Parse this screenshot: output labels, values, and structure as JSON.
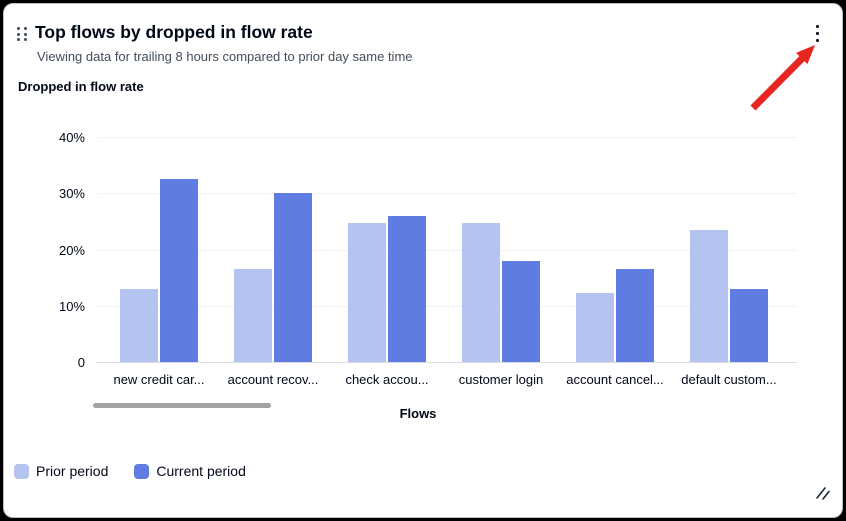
{
  "header": {
    "title": "Top flows by dropped in flow rate",
    "subtitle": "Viewing data for trailing 8 hours compared to prior day same time"
  },
  "panel": {
    "metric_label": "Dropped in flow rate"
  },
  "icons": {
    "drag_handle": "six-dot-drag-grip",
    "actions_menu": "vertical-ellipsis",
    "resize": "diagonal-resize-grip"
  },
  "annotation": {
    "type": "red-arrow",
    "color": "#e8251f",
    "points_to": "actions-menu-button"
  },
  "chart_data": {
    "type": "bar",
    "title": "Dropped in flow rate",
    "categories": [
      "new credit car...",
      "account recov...",
      "check accou...",
      "customer login",
      "account cancel...",
      "default custom..."
    ],
    "series": [
      {
        "name": "Prior period",
        "color": "#b5c3f1",
        "values": [
          13,
          16.5,
          24.7,
          24.7,
          12.3,
          23.5
        ]
      },
      {
        "name": "Current period",
        "color": "#5e7ce2",
        "values": [
          32.5,
          30,
          26,
          18,
          16.5,
          13
        ]
      }
    ],
    "xlabel": "Flows",
    "ylabel": "",
    "ylim": [
      0,
      40
    ],
    "y_ticks": [
      {
        "label": "0",
        "value": 0
      },
      {
        "label": "10%",
        "value": 10
      },
      {
        "label": "20%",
        "value": 20
      },
      {
        "label": "30%",
        "value": 30
      },
      {
        "label": "40%",
        "value": 40
      }
    ],
    "grid": "horizontal",
    "legend_position": "bottom-left",
    "scrollbar": true
  }
}
